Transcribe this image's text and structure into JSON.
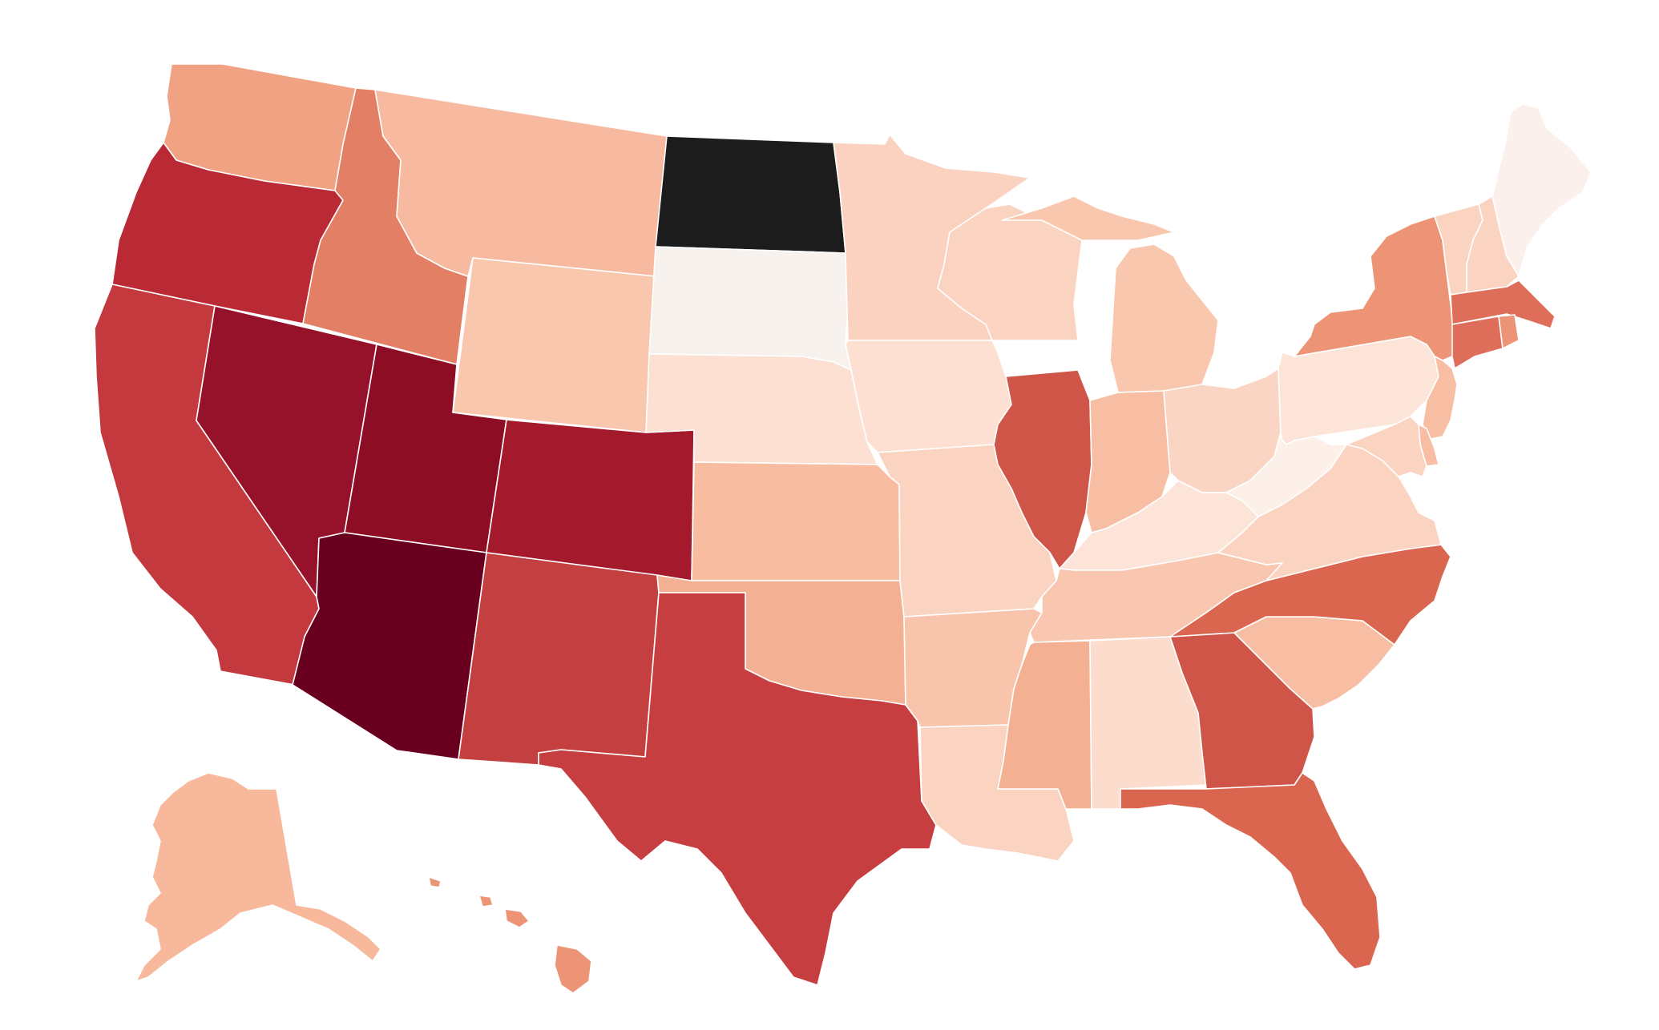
{
  "map": {
    "type": "choropleth",
    "region": "United States",
    "legend": null,
    "title": "",
    "palette": {
      "highlight": "#1c1c1c",
      "stroke": "#ffffff",
      "background": "#ffffff"
    },
    "states": [
      {
        "id": "WA",
        "fill": "#f0a283"
      },
      {
        "id": "OR",
        "fill": "#b92a35"
      },
      {
        "id": "CA",
        "fill": "#c3393d"
      },
      {
        "id": "ID",
        "fill": "#e37f64"
      },
      {
        "id": "NV",
        "fill": "#95122a"
      },
      {
        "id": "UT",
        "fill": "#8c0d24"
      },
      {
        "id": "AZ",
        "fill": "#69001f"
      },
      {
        "id": "MT",
        "fill": "#f7baa0"
      },
      {
        "id": "WY",
        "fill": "#f9c6ae"
      },
      {
        "id": "CO",
        "fill": "#a4192b"
      },
      {
        "id": "NM",
        "fill": "#c43f40"
      },
      {
        "id": "ND",
        "fill": "#1c1c1c"
      },
      {
        "id": "SD",
        "fill": "#f8f2ef"
      },
      {
        "id": "NE",
        "fill": "#fce0d1"
      },
      {
        "id": "KS",
        "fill": "#f8bca1"
      },
      {
        "id": "OK",
        "fill": "#f4b092"
      },
      {
        "id": "TX",
        "fill": "#c63e3f"
      },
      {
        "id": "MN",
        "fill": "#fbd2bf"
      },
      {
        "id": "IA",
        "fill": "#fde0d2"
      },
      {
        "id": "MO",
        "fill": "#fbd3c1"
      },
      {
        "id": "AR",
        "fill": "#f9c4ac"
      },
      {
        "id": "LA",
        "fill": "#fbd3c1"
      },
      {
        "id": "WI",
        "fill": "#fbd3c1"
      },
      {
        "id": "IL",
        "fill": "#d05549"
      },
      {
        "id": "MI",
        "fill": "#f9c6ae"
      },
      {
        "id": "IN",
        "fill": "#f7bea4"
      },
      {
        "id": "OH",
        "fill": "#fbd5c4"
      },
      {
        "id": "KY",
        "fill": "#fde4d8"
      },
      {
        "id": "TN",
        "fill": "#f9c7b0"
      },
      {
        "id": "MS",
        "fill": "#f4b092"
      },
      {
        "id": "AL",
        "fill": "#fcdccd"
      },
      {
        "id": "GA",
        "fill": "#d05549"
      },
      {
        "id": "FL",
        "fill": "#db6650"
      },
      {
        "id": "SC",
        "fill": "#f7bea4"
      },
      {
        "id": "NC",
        "fill": "#db6650"
      },
      {
        "id": "VA",
        "fill": "#fbd3c1"
      },
      {
        "id": "WV",
        "fill": "#fdf0e9"
      },
      {
        "id": "PA",
        "fill": "#fde4d8"
      },
      {
        "id": "NY",
        "fill": "#ed9476"
      },
      {
        "id": "VT",
        "fill": "#fbd3c1"
      },
      {
        "id": "NH",
        "fill": "#fbd3c1"
      },
      {
        "id": "ME",
        "fill": "#fbf0ec"
      },
      {
        "id": "MA",
        "fill": "#de6e59"
      },
      {
        "id": "CT",
        "fill": "#de6e59"
      },
      {
        "id": "RI",
        "fill": "#ed9476"
      },
      {
        "id": "NJ",
        "fill": "#f7bea4"
      },
      {
        "id": "DE",
        "fill": "#f7bea4"
      },
      {
        "id": "MD",
        "fill": "#fbd3c1"
      },
      {
        "id": "AK",
        "fill": "#f7b89c"
      },
      {
        "id": "HI",
        "fill": "#ed9476"
      }
    ]
  }
}
